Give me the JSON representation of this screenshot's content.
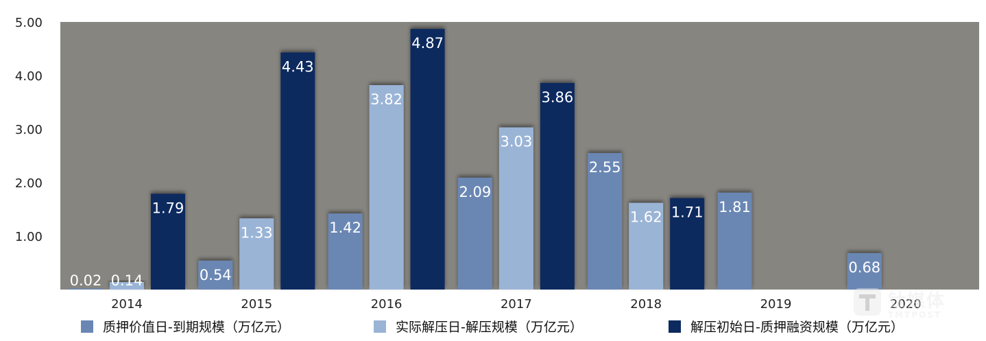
{
  "chart_data": {
    "type": "bar",
    "categories": [
      "2014",
      "2015",
      "2016",
      "2017",
      "2018",
      "2019",
      "2020"
    ],
    "series": [
      {
        "name": "质押价值日-到期规模（万亿元）",
        "color": "#6a87b4",
        "values": [
          0.02,
          0.54,
          1.42,
          2.09,
          2.55,
          1.81,
          0.68
        ]
      },
      {
        "name": "实际解压日-解压规模（万亿元）",
        "color": "#9ab4d6",
        "values": [
          0.14,
          1.33,
          3.82,
          3.03,
          1.62,
          null,
          null
        ]
      },
      {
        "name": "解压初始日-质押融资规模（万亿元）",
        "color": "#0d2a5e",
        "values": [
          1.79,
          4.43,
          4.87,
          3.86,
          1.71,
          null,
          null
        ]
      }
    ],
    "y_ticks": [
      "1.00",
      "2.00",
      "3.00",
      "4.00",
      "5.00"
    ],
    "ylim": [
      0,
      5
    ],
    "plot_background": "#878580",
    "data_label_color": "#ffffff",
    "grid": false,
    "legend_position": "bottom"
  },
  "watermark": {
    "text_cn": "钛媒体",
    "text_en": "TMTPOST"
  }
}
